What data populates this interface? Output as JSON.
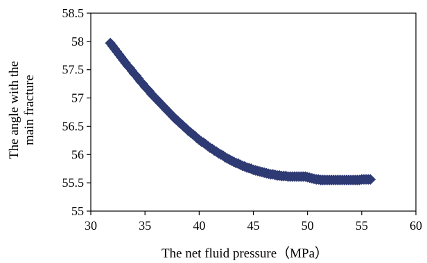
{
  "chart_data": {
    "type": "scatter",
    "title": "",
    "xlabel": "The net fluid pressure（MPa）",
    "ylabel_lines": [
      "The angle with the",
      "main fracture"
    ],
    "xlim": [
      30,
      60
    ],
    "ylim": [
      55,
      58.5
    ],
    "xticks": [
      "30",
      "35",
      "40",
      "45",
      "50",
      "55",
      "60"
    ],
    "yticks": [
      "55",
      "55.5",
      "56",
      "56.5",
      "57",
      "57.5",
      "58",
      "58.5"
    ],
    "grid": false,
    "legend": "none",
    "marker": "diamond",
    "marker_color": "#2e3a73",
    "series": [
      {
        "x": [
          31.8,
          32.0,
          32.2,
          32.4,
          32.6,
          32.8,
          33.0,
          33.2,
          33.4,
          33.6,
          33.8,
          34.0,
          34.2,
          34.4,
          34.6,
          34.8,
          35.0,
          35.2,
          35.4,
          35.6,
          35.8,
          36.0,
          36.2,
          36.4,
          36.6,
          36.8,
          37.0,
          37.2,
          37.4,
          37.6,
          37.8,
          38.0,
          38.2,
          38.4,
          38.6,
          38.8,
          39.0,
          39.2,
          39.4,
          39.6,
          39.8,
          40.0,
          40.2,
          40.4,
          40.6,
          40.8,
          41.0,
          41.2,
          41.4,
          41.6,
          41.8,
          42.0,
          42.2,
          42.4,
          42.6,
          42.8,
          43.0,
          43.2,
          43.4,
          43.6,
          43.8,
          44.0,
          44.2,
          44.4,
          44.6,
          44.8,
          45.0,
          45.2,
          45.4,
          45.6,
          45.8,
          46.0,
          46.2,
          46.4,
          46.6,
          46.8,
          47.0,
          47.2,
          47.4,
          47.6,
          47.8,
          48.0,
          48.2,
          48.4,
          48.6,
          48.8,
          49.0,
          49.2,
          49.4,
          49.6,
          49.8,
          50.0,
          50.2,
          50.4,
          50.6,
          50.8,
          51.0,
          51.2,
          51.4,
          51.6,
          51.8,
          52.0,
          52.2,
          52.4,
          52.6,
          52.8,
          53.0,
          53.2,
          53.4,
          53.6,
          53.8,
          54.0,
          54.2,
          54.4,
          54.6,
          54.8,
          55.0,
          55.2,
          55.4,
          55.6,
          55.8
        ],
        "y": [
          57.97,
          57.92,
          57.87,
          57.82,
          57.77,
          57.72,
          57.67,
          57.62,
          57.57,
          57.53,
          57.48,
          57.43,
          57.39,
          57.34,
          57.29,
          57.25,
          57.2,
          57.16,
          57.12,
          57.07,
          57.03,
          56.99,
          56.95,
          56.91,
          56.87,
          56.83,
          56.79,
          56.75,
          56.71,
          56.67,
          56.63,
          56.6,
          56.56,
          56.53,
          56.49,
          56.46,
          56.42,
          56.39,
          56.36,
          56.33,
          56.29,
          56.26,
          56.23,
          56.21,
          56.18,
          56.15,
          56.12,
          56.1,
          56.07,
          56.05,
          56.02,
          56.0,
          55.98,
          55.95,
          55.93,
          55.91,
          55.89,
          55.87,
          55.85,
          55.84,
          55.82,
          55.8,
          55.79,
          55.77,
          55.76,
          55.75,
          55.73,
          55.72,
          55.71,
          55.7,
          55.69,
          55.68,
          55.67,
          55.66,
          55.65,
          55.65,
          55.64,
          55.63,
          55.63,
          55.62,
          55.62,
          55.62,
          55.61,
          55.61,
          55.61,
          55.61,
          55.61,
          55.61,
          55.61,
          55.61,
          55.61,
          55.6,
          55.59,
          55.58,
          55.57,
          55.56,
          55.56,
          55.55,
          55.55,
          55.55,
          55.55,
          55.55,
          55.55,
          55.55,
          55.55,
          55.55,
          55.55,
          55.55,
          55.55,
          55.55,
          55.55,
          55.55,
          55.55,
          55.55,
          55.55,
          55.55,
          55.56,
          55.56,
          55.56,
          55.56,
          55.56
        ]
      }
    ]
  }
}
